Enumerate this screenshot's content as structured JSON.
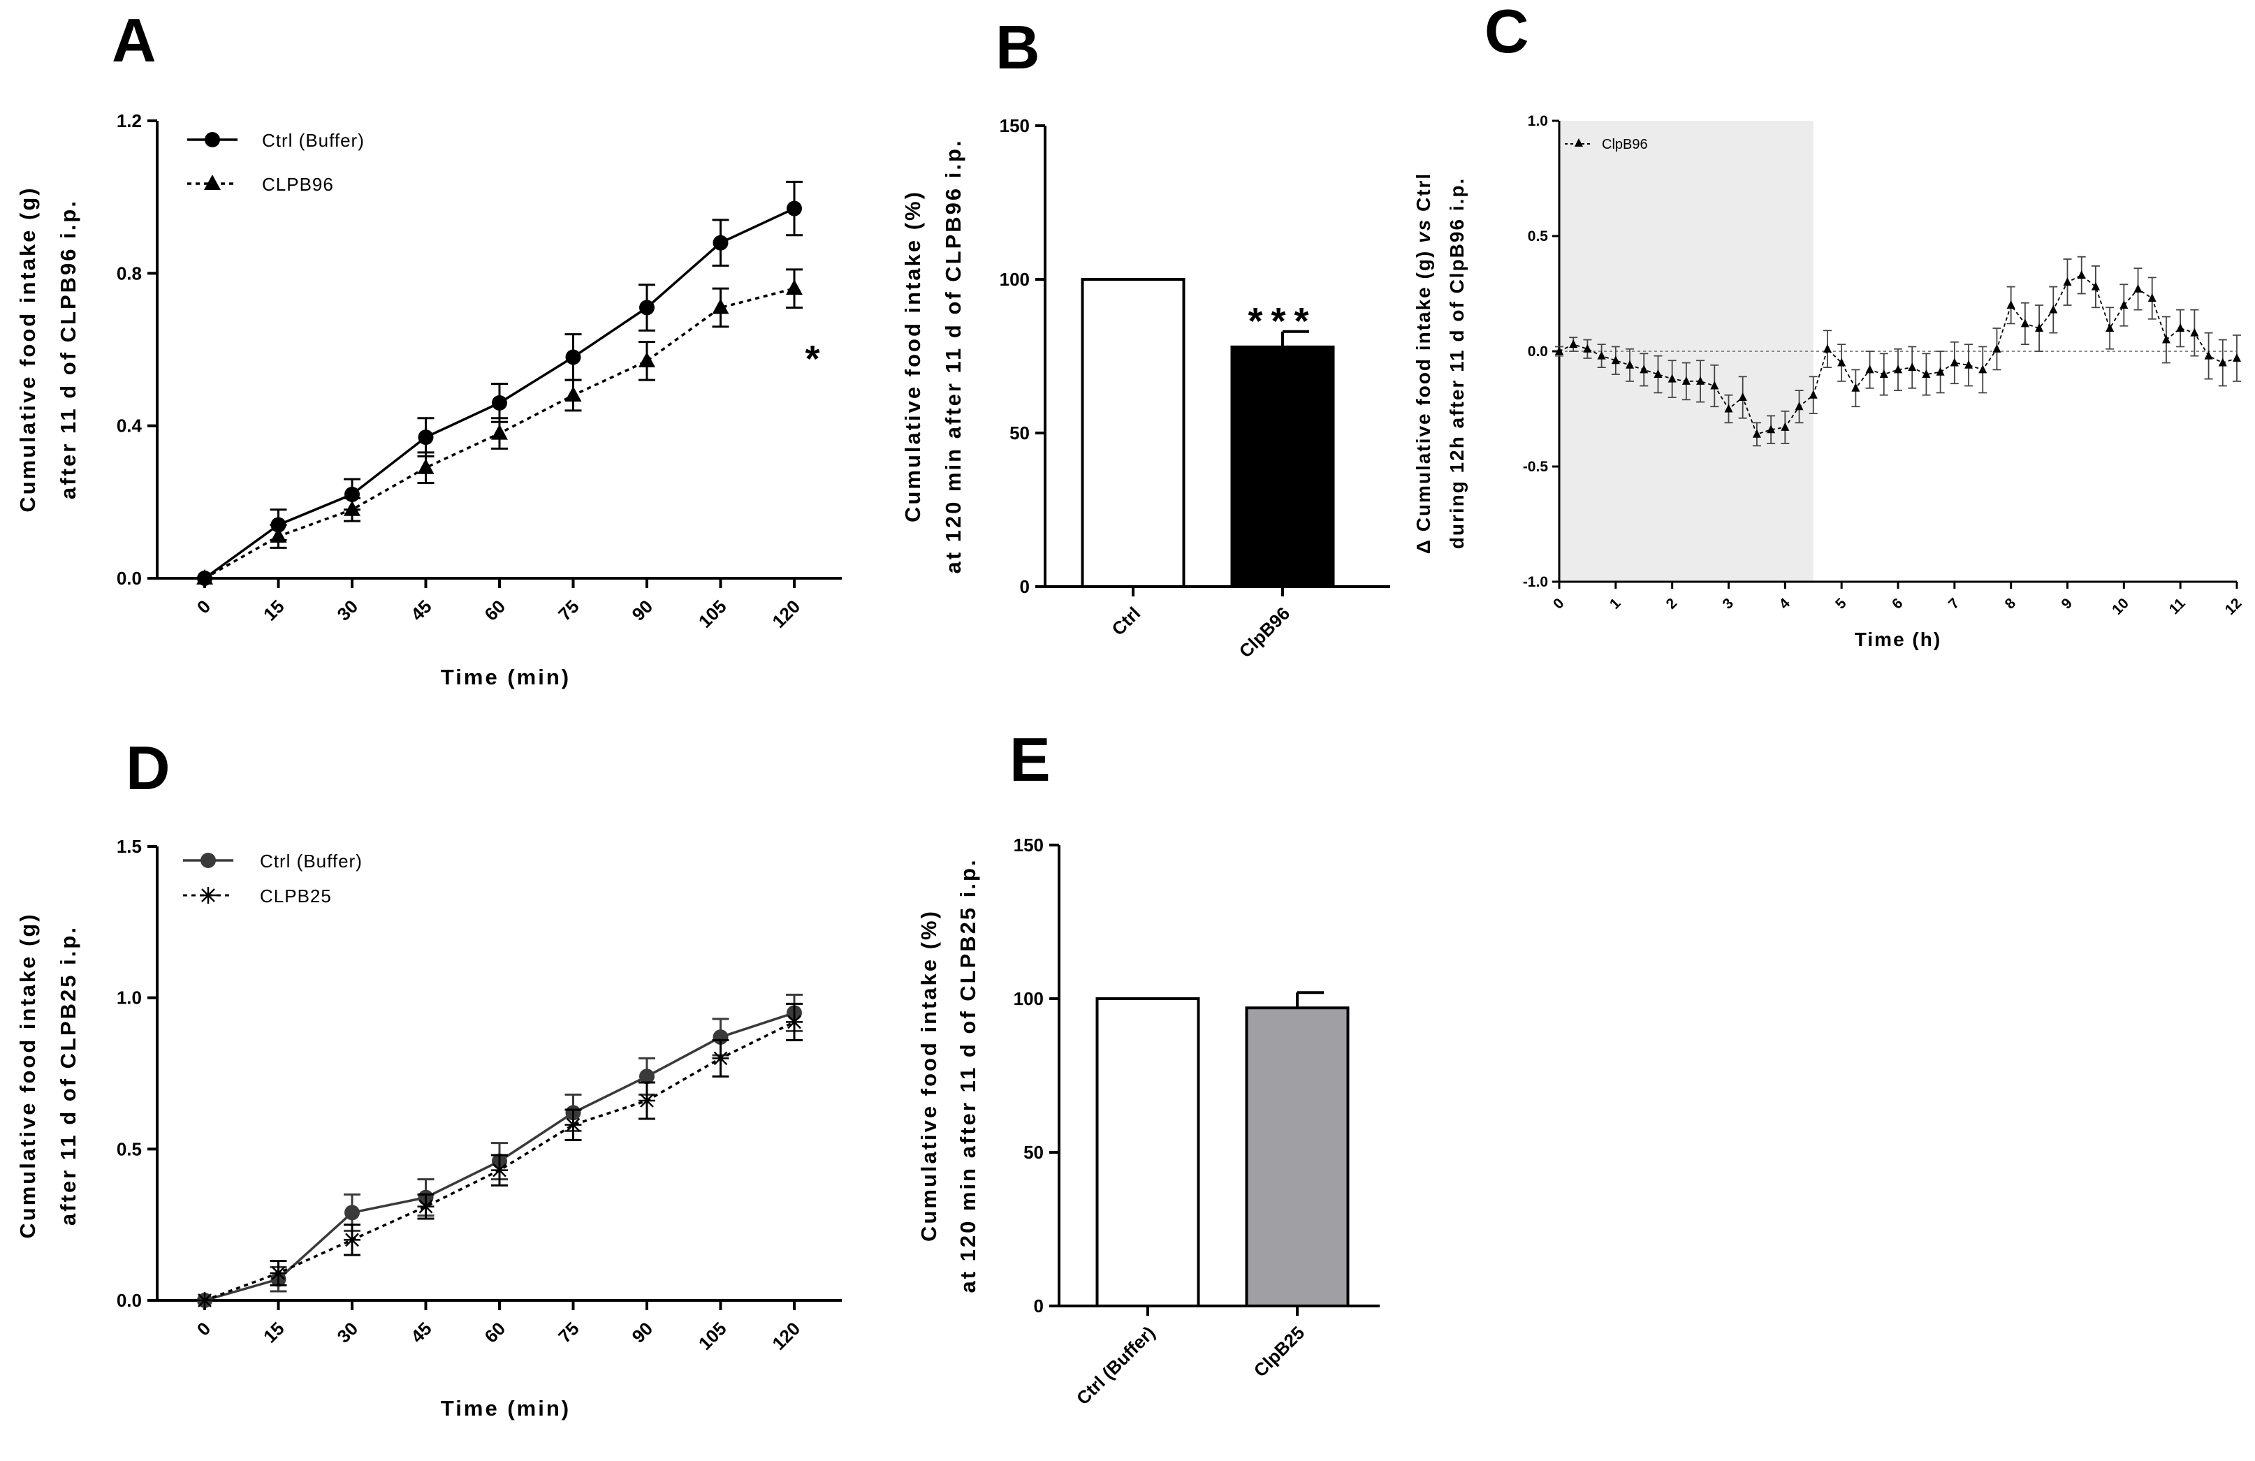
{
  "panels": {
    "A": "A",
    "B": "B",
    "C": "C",
    "D": "D",
    "E": "E"
  },
  "chart_data": [
    {
      "id": "A",
      "type": "line",
      "x": [
        0,
        15,
        30,
        45,
        60,
        75,
        90,
        105,
        120
      ],
      "x_ticks": [
        "0",
        "15",
        "30",
        "45",
        "60",
        "75",
        "90",
        "105",
        "120"
      ],
      "xlabel": "Time (min)",
      "ylabel": [
        "Cumulative food intake (g)",
        "after 11 d of CLPB96 i.p."
      ],
      "ylim": [
        0,
        1.2
      ],
      "y_ticks": [
        "0.0",
        "0.4",
        "0.8",
        "1.2"
      ],
      "series": [
        {
          "name": "Ctrl (Buffer)",
          "marker": "circle",
          "dash": "solid",
          "values": [
            0,
            0.14,
            0.22,
            0.37,
            0.46,
            0.58,
            0.71,
            0.88,
            0.97
          ],
          "err": [
            0,
            0.04,
            0.04,
            0.05,
            0.05,
            0.06,
            0.06,
            0.06,
            0.07
          ]
        },
        {
          "name": "CLPB96",
          "marker": "triangle",
          "dash": "dotted",
          "values": [
            0,
            0.11,
            0.18,
            0.29,
            0.38,
            0.48,
            0.57,
            0.71,
            0.76
          ],
          "err": [
            0,
            0.03,
            0.03,
            0.04,
            0.04,
            0.04,
            0.05,
            0.05,
            0.05
          ]
        }
      ],
      "annotations": [
        {
          "text": "*",
          "x": 120
        }
      ]
    },
    {
      "id": "B",
      "type": "bar",
      "categories": [
        "Ctrl",
        "ClpB96"
      ],
      "values": [
        100,
        78
      ],
      "err": [
        0,
        5
      ],
      "colors": [
        "#ffffff",
        "#000000"
      ],
      "ylabel": [
        "Cumulative food intake (%)",
        "at 120 min after 11 d of CLPB96 i.p."
      ],
      "ylim": [
        0,
        150
      ],
      "y_ticks": [
        "0",
        "50",
        "100",
        "150"
      ],
      "annotations": [
        {
          "text": "***",
          "category": "ClpB96"
        }
      ]
    },
    {
      "id": "C",
      "type": "line",
      "xlabel": "Time (h)",
      "ylabel": [
        "Cumulative food intake (g) vs Ctrl",
        "during 12h after 11 d of ClpB96 i.p."
      ],
      "ylabel_prefix": "Δ",
      "ylabel_italic": "vs",
      "xlim": [
        0,
        12
      ],
      "x_ticks": [
        "0",
        "1",
        "2",
        "3",
        "4",
        "5",
        "6",
        "7",
        "8",
        "9",
        "10",
        "11",
        "12"
      ],
      "ylim": [
        -1.0,
        1.0
      ],
      "y_ticks": [
        "-1.0",
        "-0.5",
        "0.0",
        "0.5",
        "1.0"
      ],
      "shaded_region": [
        0,
        4.5
      ],
      "series": [
        {
          "name": "ClpB96",
          "marker": "triangle",
          "dash": "dashed",
          "x": [
            0,
            0.25,
            0.5,
            0.75,
            1,
            1.25,
            1.5,
            1.75,
            2,
            2.25,
            2.5,
            2.75,
            3,
            3.25,
            3.5,
            3.75,
            4,
            4.25,
            4.5,
            4.75,
            5,
            5.25,
            5.5,
            5.75,
            6,
            6.25,
            6.5,
            6.75,
            7,
            7.25,
            7.5,
            7.75,
            8,
            8.25,
            8.5,
            8.75,
            9,
            9.25,
            9.5,
            9.75,
            10,
            10.25,
            10.5,
            10.75,
            11,
            11.25,
            11.5,
            11.75,
            12
          ],
          "values": [
            0,
            0.03,
            0.01,
            -0.02,
            -0.04,
            -0.06,
            -0.08,
            -0.1,
            -0.12,
            -0.13,
            -0.13,
            -0.15,
            -0.25,
            -0.2,
            -0.36,
            -0.34,
            -0.33,
            -0.24,
            -0.19,
            0.01,
            -0.05,
            -0.16,
            -0.08,
            -0.1,
            -0.08,
            -0.07,
            -0.1,
            -0.09,
            -0.05,
            -0.06,
            -0.08,
            0.01,
            0.2,
            0.12,
            0.1,
            0.18,
            0.3,
            0.33,
            0.28,
            0.1,
            0.2,
            0.27,
            0.23,
            0.05,
            0.1,
            0.08,
            -0.02,
            -0.05,
            -0.03
          ],
          "err": [
            0.02,
            0.03,
            0.04,
            0.05,
            0.06,
            0.07,
            0.07,
            0.08,
            0.08,
            0.08,
            0.09,
            0.09,
            0.06,
            0.09,
            0.05,
            0.06,
            0.07,
            0.07,
            0.08,
            0.08,
            0.08,
            0.08,
            0.08,
            0.09,
            0.09,
            0.09,
            0.09,
            0.09,
            0.09,
            0.09,
            0.1,
            0.09,
            0.08,
            0.09,
            0.1,
            0.1,
            0.1,
            0.08,
            0.09,
            0.09,
            0.09,
            0.09,
            0.09,
            0.1,
            0.08,
            0.1,
            0.1,
            0.1,
            0.1
          ]
        }
      ]
    },
    {
      "id": "D",
      "type": "line",
      "x": [
        0,
        15,
        30,
        45,
        60,
        75,
        90,
        105,
        120
      ],
      "x_ticks": [
        "0",
        "15",
        "30",
        "45",
        "60",
        "75",
        "90",
        "105",
        "120"
      ],
      "xlabel": "Time (min)",
      "ylabel": [
        "Cumulative food intake (g)",
        "after 11 d of CLPB25 i.p."
      ],
      "ylim": [
        0,
        1.5
      ],
      "y_ticks": [
        "0.0",
        "0.5",
        "1.0",
        "1.5"
      ],
      "series": [
        {
          "name": "Ctrl (Buffer)",
          "marker": "circle",
          "dash": "solid",
          "color": "#3a3a3a",
          "values": [
            0,
            0.07,
            0.29,
            0.34,
            0.46,
            0.62,
            0.74,
            0.87,
            0.95
          ],
          "err": [
            0,
            0.04,
            0.06,
            0.06,
            0.06,
            0.06,
            0.06,
            0.06,
            0.06
          ]
        },
        {
          "name": "CLPB25",
          "marker": "asterisk",
          "dash": "dotted",
          "values": [
            0,
            0.09,
            0.2,
            0.31,
            0.43,
            0.58,
            0.66,
            0.8,
            0.92
          ],
          "err": [
            0,
            0.04,
            0.05,
            0.04,
            0.05,
            0.05,
            0.06,
            0.06,
            0.06
          ]
        }
      ]
    },
    {
      "id": "E",
      "type": "bar",
      "categories": [
        "Ctrl (Buffer)",
        "ClpB25"
      ],
      "values": [
        100,
        97
      ],
      "err": [
        0,
        5
      ],
      "colors": [
        "#ffffff",
        "#a0a0a4"
      ],
      "ylabel": [
        "Cumulative food intake (%)",
        "at 120 min after 11 d of CLPB25 i.p."
      ],
      "ylim": [
        0,
        150
      ],
      "y_ticks": [
        "0",
        "50",
        "100",
        "150"
      ]
    }
  ]
}
